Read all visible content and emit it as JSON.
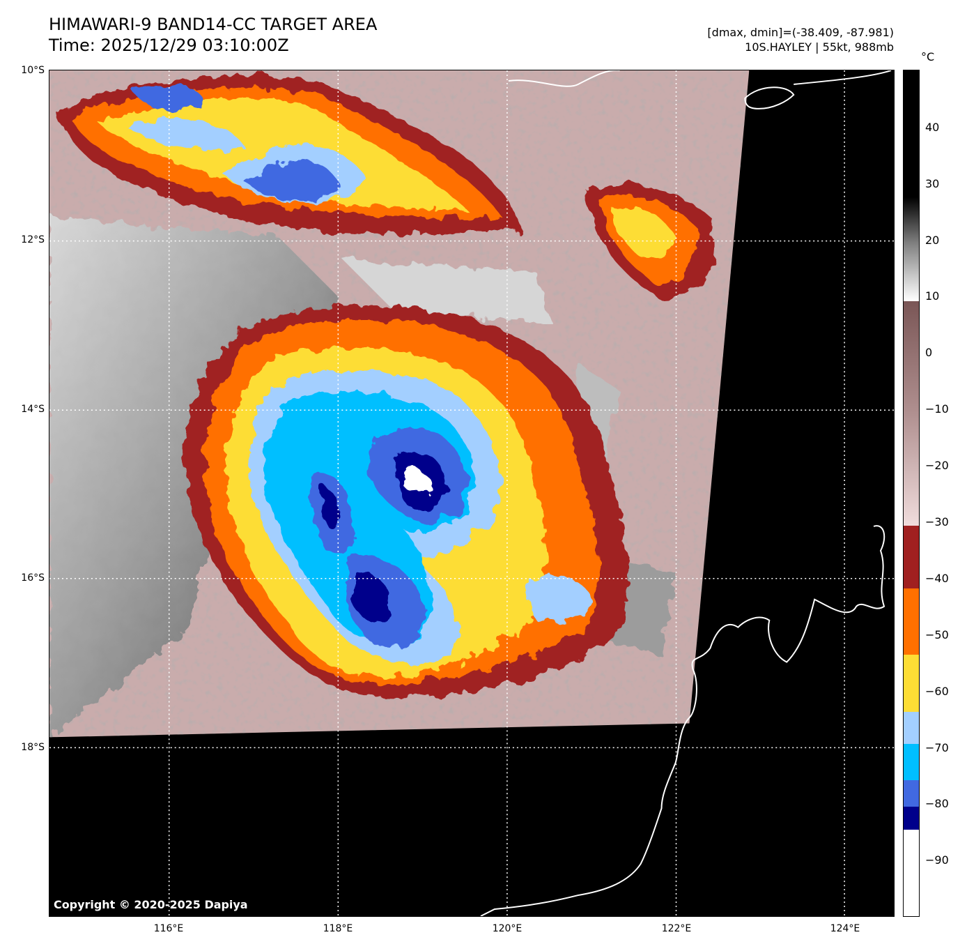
{
  "header": {
    "title_line1": "HIMAWARI-9 BAND14-CC TARGET AREA",
    "title_line2": "Time: 2025/12/29 03:10:00Z",
    "info_line1": "[dmax, dmin]=(-38.409, -87.981)",
    "info_line2": "10S.HAYLEY | 55kt, 988mb"
  },
  "map": {
    "lat_labels": [
      "10°S",
      "12°S",
      "14°S",
      "16°S",
      "18°S"
    ],
    "lon_labels": [
      "116°E",
      "118°E",
      "120°E",
      "122°E",
      "124°E"
    ],
    "copyright": "Copyright © 2020-2025 Dapiya",
    "storm_id": "10S.HAYLEY"
  },
  "colorbar": {
    "unit": "°C",
    "tick_labels": [
      "40",
      "30",
      "20",
      "10",
      "0",
      "−10",
      "−20",
      "−30",
      "−40",
      "−50",
      "−60",
      "−70",
      "−80",
      "−90"
    ],
    "colors": {
      "white": "#ffffff",
      "navy": "#00008b",
      "royal_blue": "#4169e1",
      "deep_sky_blue": "#00bfff",
      "light_blue": "#a3cfff",
      "gold": "#fddd35",
      "orange": "#ff7000",
      "dark_red": "#a02020",
      "pink": "#e8d0d0",
      "mauve": "#806060",
      "light_gray": "#e8e8e8",
      "black": "#000000"
    }
  }
}
